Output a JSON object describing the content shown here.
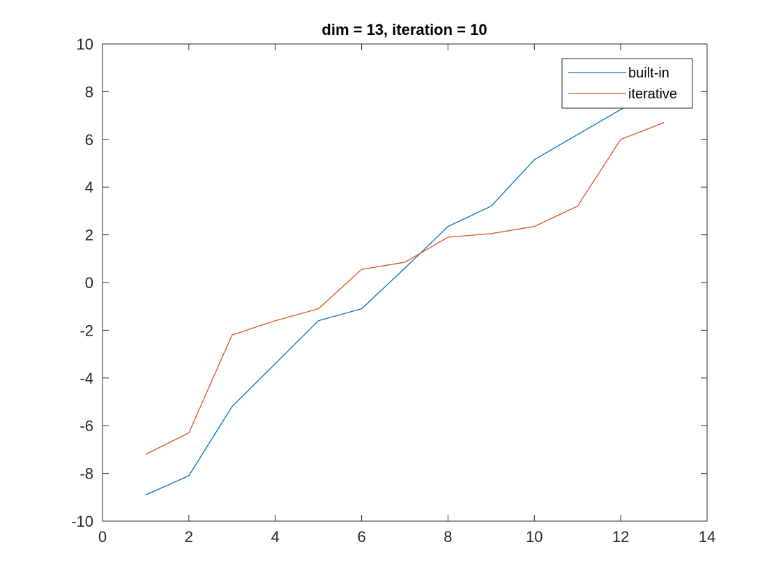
{
  "chart_data": {
    "type": "line",
    "title": "dim = 13, iteration = 10",
    "xlabel": "",
    "ylabel": "",
    "xlim": [
      0,
      14
    ],
    "ylim": [
      -10,
      10
    ],
    "xticks": [
      0,
      2,
      4,
      6,
      8,
      10,
      12,
      14
    ],
    "yticks": [
      -10,
      -8,
      -6,
      -4,
      -2,
      0,
      2,
      4,
      6,
      8,
      10
    ],
    "grid": false,
    "legend_position": "top-right",
    "series": [
      {
        "name": "built-in",
        "color": "#0072BD",
        "x": [
          1,
          2,
          3,
          4,
          5,
          6,
          7,
          8,
          9,
          10,
          11,
          12,
          13
        ],
        "y": [
          -8.9,
          -8.1,
          -5.2,
          -3.4,
          -1.6,
          -1.1,
          0.6,
          2.35,
          3.2,
          5.15,
          6.2,
          7.25,
          8.2
        ]
      },
      {
        "name": "iterative",
        "color": "#D95319",
        "x": [
          1,
          2,
          3,
          4,
          5,
          6,
          7,
          8,
          9,
          10,
          11,
          12,
          13
        ],
        "y": [
          -7.2,
          -6.3,
          -2.2,
          -1.6,
          -1.1,
          0.55,
          0.85,
          1.9,
          2.05,
          2.35,
          3.2,
          6.0,
          6.7
        ]
      }
    ]
  }
}
